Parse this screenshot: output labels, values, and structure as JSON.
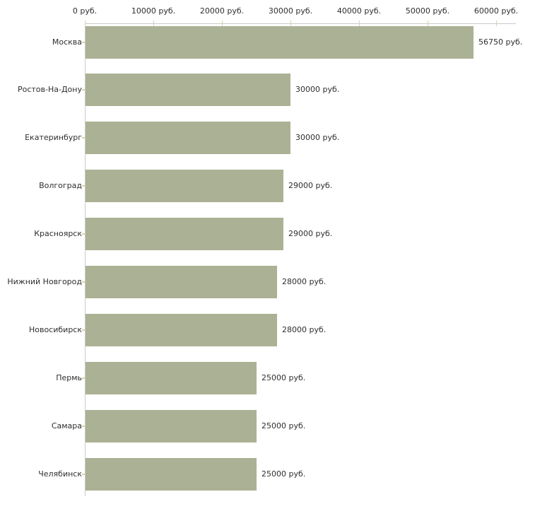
{
  "colors": {
    "bar_fill": "#abb194",
    "axis_line": "#c9c9c9",
    "tick_mark": "#d8d2ab",
    "text": "#2e2e2e",
    "background": "#ffffff"
  },
  "chart_data": {
    "type": "bar",
    "orientation": "horizontal",
    "title": "",
    "xlabel": "",
    "ylabel": "",
    "unit": "руб.",
    "grid": false,
    "legend": "none",
    "categories": [
      "Москва",
      "Ростов-На-Дону",
      "Екатеринбург",
      "Волгоград",
      "Красноярск",
      "Нижний Новгород",
      "Новосибирск",
      "Пермь",
      "Самара",
      "Челябинск"
    ],
    "values": [
      56750,
      30000,
      30000,
      29000,
      29000,
      28000,
      28000,
      25000,
      25000,
      25000
    ],
    "value_labels": [
      "56750 руб.",
      "30000 руб.",
      "30000 руб.",
      "29000 руб.",
      "29000 руб.",
      "28000 руб.",
      "28000 руб.",
      "25000 руб.",
      "25000 руб.",
      "25000 руб."
    ],
    "x_axis": {
      "position": "top",
      "min": 0,
      "max": 62500,
      "ticks": [
        0,
        10000,
        20000,
        30000,
        40000,
        50000,
        60000
      ],
      "tick_labels": [
        "0 руб.",
        "10000 руб.",
        "20000 руб.",
        "30000 руб.",
        "40000 руб.",
        "50000 руб.",
        "60000 руб."
      ]
    }
  }
}
